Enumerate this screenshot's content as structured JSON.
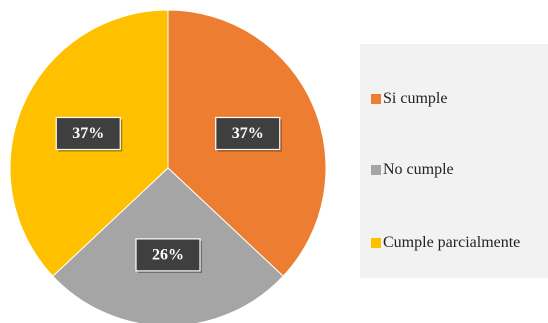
{
  "chart_data": {
    "type": "pie",
    "title": "",
    "categories": [
      "Si cumple",
      "No cumple",
      "Cumple parcialmente"
    ],
    "values": [
      37,
      26,
      37
    ],
    "labels": [
      "37%",
      "26%",
      "37%"
    ],
    "colors": [
      "#ED7D31",
      "#A5A5A5",
      "#FFC000"
    ],
    "start_angle_deg": 0,
    "direction": "clockwise",
    "legend_position": "right"
  }
}
